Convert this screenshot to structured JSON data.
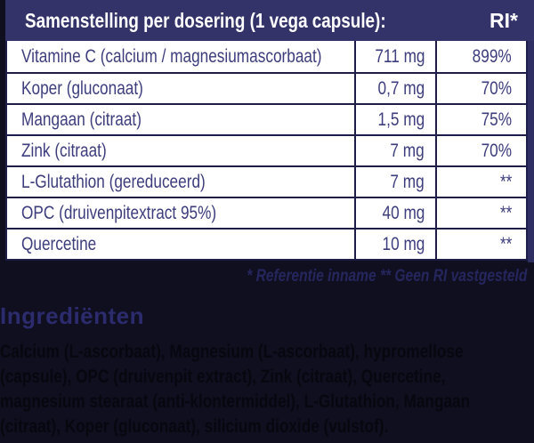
{
  "colors": {
    "page_bg": "#0f0f1f",
    "header_bg": "#33336a",
    "header_text": "#ffffff",
    "row_bg": "#ffffff",
    "row_text": "#3d3d7d",
    "table_border": "#1d1d47",
    "footnote_text": "#26265e",
    "heading_text": "#2b2b6e",
    "body_text": "#070710"
  },
  "table": {
    "title": "Samenstelling per dosering (1 vega capsule):",
    "ri_header": "RI*",
    "rows": [
      {
        "name": "Vitamine C (calcium / magnesiumascorbaat)",
        "amount": "711 mg",
        "ri": "899%"
      },
      {
        "name": "Koper (gluconaat)",
        "amount": "0,7 mg",
        "ri": "70%"
      },
      {
        "name": "Mangaan (citraat)",
        "amount": "1,5 mg",
        "ri": "75%"
      },
      {
        "name": "Zink (citraat)",
        "amount": "7 mg",
        "ri": "70%"
      },
      {
        "name": "L-Glutathion (gereduceerd)",
        "amount": "7 mg",
        "ri": "**"
      },
      {
        "name": "OPC (druivenpitextract 95%)",
        "amount": "40 mg",
        "ri": "**"
      },
      {
        "name": "Quercetine",
        "amount": "10 mg",
        "ri": "**"
      }
    ]
  },
  "footnote": "* Referentie inname  ** Geen RI vastgesteld",
  "ingredients": {
    "heading": "Ingrediënten",
    "lines": [
      "Calcium (L-ascorbaat), Magnesium (L-ascorbaat), hypromellose",
      "(capsule), OPC (druivenpit extract), Zink (citraat), Quercetine,",
      "magnesium stearaat (anti-klontermiddel), L-Glutathion, Mangaan",
      "(citraat), Koper (gluconaat), silicium dioxide (vulstof)."
    ]
  }
}
